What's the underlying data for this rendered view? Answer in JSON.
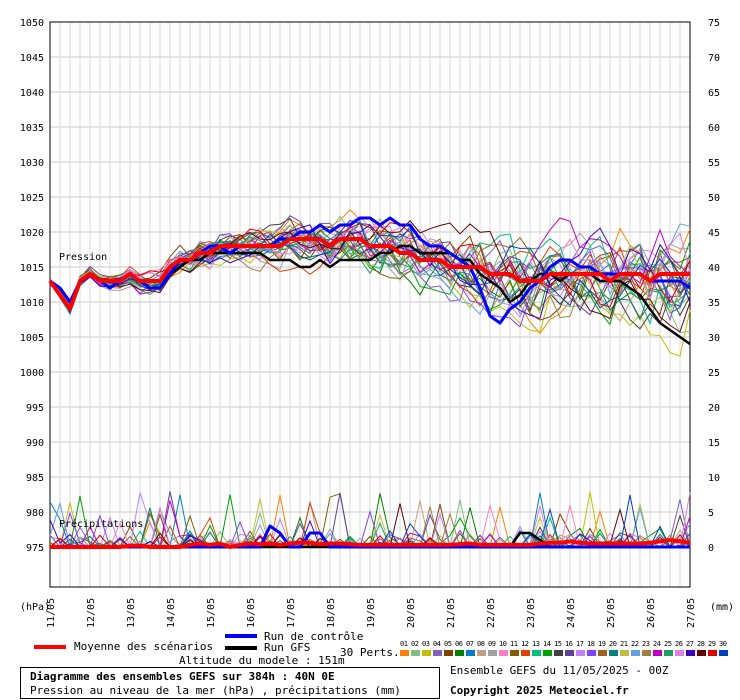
{
  "chart_data": {
    "type": "line",
    "left_axis": {
      "unit_label": "(hPa)",
      "ticks": [
        1050,
        1045,
        1040,
        1035,
        1030,
        1025,
        1020,
        1015,
        1010,
        1005,
        1000,
        995,
        990,
        985,
        980,
        975
      ],
      "ylim": [
        975,
        1050
      ]
    },
    "right_axis": {
      "unit_label": "(mm)",
      "ticks": [
        75,
        70,
        65,
        60,
        55,
        50,
        45,
        40,
        35,
        30,
        25,
        20,
        15,
        10,
        5,
        0
      ],
      "ylim": [
        0,
        75
      ]
    },
    "x_ticks": [
      "11/05",
      "12/05",
      "13/05",
      "14/05",
      "15/05",
      "16/05",
      "17/05",
      "18/05",
      "19/05",
      "20/05",
      "21/05",
      "22/05",
      "23/05",
      "24/05",
      "25/05",
      "26/05",
      "27/05"
    ],
    "grid": true,
    "section_labels": {
      "pressure": "Pression",
      "precip": "Précipitations"
    },
    "series": [
      {
        "name": "Moyenne des scénarios",
        "color": "#ff0000",
        "pressure": [
          1013,
          1011,
          1009,
          1013,
          1014,
          1013,
          1013,
          1013,
          1014,
          1013,
          1013,
          1013,
          1015,
          1016,
          1016,
          1017,
          1017,
          1018,
          1018,
          1018,
          1018,
          1018,
          1018,
          1018,
          1019,
          1019,
          1019,
          1019,
          1018,
          1019,
          1019,
          1019,
          1018,
          1018,
          1018,
          1017,
          1017,
          1016,
          1016,
          1016,
          1015,
          1015,
          1015,
          1015,
          1014,
          1014,
          1014,
          1013,
          1013,
          1013,
          1014,
          1014,
          1014,
          1014,
          1014,
          1014,
          1013,
          1014,
          1014,
          1014,
          1013,
          1014,
          1014,
          1014,
          1014
        ],
        "precip": [
          0,
          0,
          0,
          0,
          0,
          0,
          0,
          0,
          0.2,
          0.2,
          0,
          0,
          0,
          0,
          0.3,
          0.5,
          0.3,
          0.5,
          0,
          0.3,
          0.5,
          0.4,
          0.5,
          0.3,
          0.5,
          0.6,
          0.6,
          0.4,
          0.5,
          0.5,
          0.4,
          0.3,
          0.3,
          0.3,
          0.3,
          0.3,
          0.3,
          0.3,
          0.3,
          0.3,
          0.3,
          0.4,
          0.5,
          0.3,
          0.3,
          0.3,
          0.3,
          0.3,
          0.3,
          0.5,
          0.6,
          0.6,
          0.8,
          0.6,
          0.5,
          0.5,
          0.5,
          0.5,
          0.5,
          0.5,
          0.6,
          0.8,
          1,
          0.8,
          0.6
        ]
      },
      {
        "name": "Run de contrôle",
        "color": "#0000ff",
        "pressure": [
          1013,
          1012,
          1010,
          1013,
          1014,
          1013,
          1012,
          1013,
          1014,
          1013,
          1012,
          1012,
          1014,
          1016,
          1016,
          1017,
          1018,
          1018,
          1017,
          1018,
          1018,
          1018,
          1018,
          1019,
          1019,
          1020,
          1020,
          1021,
          1020,
          1021,
          1021,
          1022,
          1022,
          1021,
          1022,
          1021,
          1021,
          1019,
          1018,
          1018,
          1017,
          1016,
          1015,
          1012,
          1008,
          1007,
          1009,
          1010,
          1012,
          1013,
          1015,
          1016,
          1016,
          1015,
          1015,
          1014,
          1014,
          1014,
          1014,
          1014,
          1013,
          1013,
          1013,
          1013,
          1012
        ],
        "precip": [
          0,
          0,
          0,
          0,
          0,
          0,
          0,
          0,
          0,
          0,
          0,
          0,
          0,
          0,
          0,
          0,
          0,
          0,
          0,
          0,
          0,
          0,
          3,
          2,
          0,
          0,
          2,
          2,
          0,
          0,
          0,
          0,
          0,
          0,
          0,
          0,
          0,
          0,
          0,
          0,
          0,
          0,
          0,
          0,
          0,
          0,
          0,
          0,
          0,
          0,
          0,
          0,
          0,
          0,
          0,
          0,
          0,
          0,
          0,
          0,
          0,
          0,
          0,
          0,
          0
        ]
      },
      {
        "name": "Run GFS",
        "color": "#000000",
        "pressure": [
          1013,
          1012,
          1010,
          1013,
          1014,
          1013,
          1012,
          1013,
          1014,
          1013,
          1012,
          1012,
          1014,
          1015,
          1016,
          1016,
          1017,
          1017,
          1017,
          1017,
          1017,
          1017,
          1016,
          1016,
          1016,
          1015,
          1015,
          1016,
          1015,
          1016,
          1016,
          1016,
          1016,
          1017,
          1017,
          1018,
          1018,
          1017,
          1017,
          1017,
          1017,
          1016,
          1016,
          1014,
          1013,
          1012,
          1010,
          1011,
          1013,
          1014,
          1014,
          1013,
          1014,
          1014,
          1014,
          1013,
          1013,
          1013,
          1012,
          1011,
          1009,
          1007,
          1006,
          1005,
          1004
        ],
        "precip": [
          0,
          0,
          0,
          0,
          0,
          0,
          0,
          0,
          0,
          0,
          0,
          0,
          0,
          0,
          0,
          0,
          0,
          0,
          0,
          0,
          0,
          0,
          0,
          0,
          0,
          0,
          0,
          0,
          0,
          0,
          0,
          0,
          0,
          0,
          0,
          0,
          0,
          0,
          0,
          0,
          0,
          0,
          0,
          0,
          0,
          0,
          0,
          2,
          2,
          1,
          0,
          0,
          0,
          0,
          0,
          0,
          0,
          0,
          0,
          0,
          0,
          0,
          0,
          0,
          0
        ]
      }
    ],
    "perturbations_label": "30 Perts.",
    "perturbations": [
      {
        "n": "01",
        "color": "#ff8000"
      },
      {
        "n": "02",
        "color": "#80c080"
      },
      {
        "n": "03",
        "color": "#c0c000"
      },
      {
        "n": "04",
        "color": "#8060c0"
      },
      {
        "n": "05",
        "color": "#804000"
      },
      {
        "n": "06",
        "color": "#008000"
      },
      {
        "n": "07",
        "color": "#0080c0"
      },
      {
        "n": "08",
        "color": "#c0a080"
      },
      {
        "n": "09",
        "color": "#a0a0a0"
      },
      {
        "n": "10",
        "color": "#ff80c0"
      },
      {
        "n": "11",
        "color": "#806000"
      },
      {
        "n": "12",
        "color": "#e04000"
      },
      {
        "n": "13",
        "color": "#00c080"
      },
      {
        "n": "14",
        "color": "#00a000"
      },
      {
        "n": "15",
        "color": "#404040"
      },
      {
        "n": "16",
        "color": "#6040a0"
      },
      {
        "n": "17",
        "color": "#c080ff"
      },
      {
        "n": "18",
        "color": "#8040ff"
      },
      {
        "n": "19",
        "color": "#a06020"
      },
      {
        "n": "20",
        "color": "#008080"
      },
      {
        "n": "21",
        "color": "#c0c040"
      },
      {
        "n": "22",
        "color": "#60a0e0"
      },
      {
        "n": "23",
        "color": "#a08040"
      },
      {
        "n": "24",
        "color": "#c000c0"
      },
      {
        "n": "25",
        "color": "#20a060"
      },
      {
        "n": "26",
        "color": "#e080e0"
      },
      {
        "n": "27",
        "color": "#4000c0"
      },
      {
        "n": "28",
        "color": "#600000"
      },
      {
        "n": "29",
        "color": "#e00000"
      },
      {
        "n": "30",
        "color": "#0040c0"
      }
    ]
  },
  "legend": {
    "mean_label": "Moyenne des scénarios",
    "control_label": "Run de contrôle",
    "gfs_label": "Run GFS",
    "model_altitude": "Altitude du modele : 151m"
  },
  "footer": {
    "title": "Diagramme des ensembles GEFS sur 384h : 40N 0E",
    "subtitle": "Pression au niveau de la mer (hPa) , précipitations (mm)",
    "run_info": "Ensemble GEFS du 11/05/2025 - 00Z",
    "copyright": "Copyright 2025 Meteociel.fr"
  }
}
